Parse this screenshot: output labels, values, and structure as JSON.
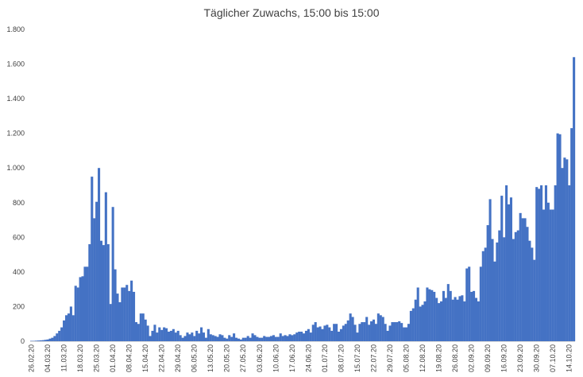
{
  "chart_data": {
    "type": "bar",
    "title": "Täglicher Zuwachs, 15:00 bis 15:00",
    "xlabel": "",
    "ylabel": "",
    "ylim": [
      0,
      1800
    ],
    "y_ticks": [
      0,
      200,
      400,
      600,
      800,
      1000,
      1200,
      1400,
      1600,
      1800
    ],
    "y_tick_labels": [
      "0",
      "200",
      "400",
      "600",
      "800",
      "1.000",
      "1.200",
      "1.400",
      "1.600",
      "1.800"
    ],
    "x_tick_labels": [
      "26.02.20",
      "04.03.20",
      "11.03.20",
      "18.03.20",
      "25.03.20",
      "01.04.20",
      "08.04.20",
      "15.04.20",
      "22.04.20",
      "29.04.20",
      "06.05.20",
      "13.05.20",
      "20.05.20",
      "27.05.20",
      "03.06.20",
      "10.06.20",
      "17.06.20",
      "24.06.20",
      "01.07.20",
      "08.07.20",
      "15.07.20",
      "22.07.20",
      "29.07.20",
      "05.08.20",
      "12.08.20",
      "19.08.20",
      "26.08.20",
      "02.09.20",
      "09.09.20",
      "16.09.20",
      "23.09.20",
      "30.09.20",
      "07.10.20",
      "14.10.20"
    ],
    "start_date": "26.02.20",
    "bar_color": "#4472c4",
    "grid": false,
    "values": [
      2,
      2,
      3,
      4,
      5,
      6,
      8,
      10,
      15,
      20,
      30,
      45,
      60,
      80,
      120,
      150,
      160,
      200,
      150,
      320,
      310,
      370,
      375,
      430,
      430,
      560,
      950,
      710,
      805,
      1000,
      580,
      555,
      860,
      560,
      215,
      775,
      415,
      275,
      225,
      310,
      310,
      325,
      290,
      350,
      285,
      110,
      100,
      160,
      160,
      125,
      90,
      30,
      60,
      95,
      50,
      80,
      65,
      80,
      75,
      55,
      60,
      70,
      50,
      60,
      35,
      20,
      30,
      50,
      40,
      50,
      30,
      60,
      45,
      80,
      50,
      20,
      70,
      40,
      35,
      30,
      25,
      40,
      35,
      20,
      15,
      35,
      25,
      45,
      20,
      15,
      10,
      20,
      20,
      30,
      20,
      45,
      35,
      25,
      20,
      20,
      30,
      25,
      25,
      30,
      35,
      25,
      25,
      45,
      30,
      35,
      30,
      40,
      35,
      40,
      50,
      55,
      55,
      45,
      60,
      70,
      50,
      95,
      110,
      80,
      85,
      70,
      90,
      95,
      80,
      60,
      100,
      100,
      55,
      70,
      90,
      100,
      120,
      160,
      140,
      95,
      50,
      100,
      110,
      110,
      140,
      95,
      115,
      125,
      100,
      160,
      150,
      140,
      100,
      60,
      90,
      110,
      110,
      110,
      115,
      105,
      80,
      80,
      100,
      175,
      190,
      240,
      310,
      200,
      210,
      230,
      310,
      300,
      295,
      285,
      250,
      220,
      230,
      290,
      250,
      330,
      290,
      240,
      255,
      240,
      260,
      265,
      230,
      420,
      430,
      285,
      290,
      250,
      230,
      430,
      520,
      540,
      670,
      820,
      590,
      460,
      570,
      640,
      840,
      600,
      900,
      790,
      830,
      590,
      630,
      640,
      740,
      710,
      710,
      660,
      580,
      540,
      470,
      890,
      880,
      900,
      760,
      900,
      800,
      760,
      760,
      900,
      1200,
      1195,
      1000,
      1060,
      1050,
      900,
      1230,
      1640
    ]
  }
}
